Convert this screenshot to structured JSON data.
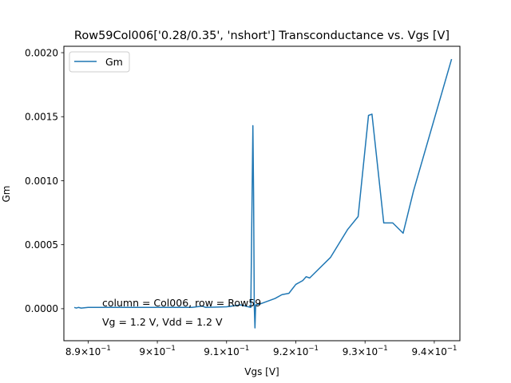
{
  "chart_data": {
    "type": "line",
    "title": "Row59Col006['0.28/0.35', 'nshort'] Transconductance vs. Vgs [V]",
    "xlabel": "Vgs [V]",
    "ylabel": "Gm",
    "xlim": [
      0.8865,
      0.9437
    ],
    "ylim": [
      -0.00025,
      0.00205
    ],
    "x_ticks": [
      {
        "value": 0.89,
        "base": "8.9",
        "exp": "−1"
      },
      {
        "value": 0.9,
        "base": "9",
        "exp": "−1"
      },
      {
        "value": 0.91,
        "base": "9.1",
        "exp": "−1"
      },
      {
        "value": 0.92,
        "base": "9.2",
        "exp": "−1"
      },
      {
        "value": 0.93,
        "base": "9.3",
        "exp": "−1"
      },
      {
        "value": 0.94,
        "base": "9.4",
        "exp": "−1"
      }
    ],
    "y_ticks": [
      {
        "value": 0.0,
        "label": "0.0000"
      },
      {
        "value": 0.0005,
        "label": "0.0005"
      },
      {
        "value": 0.001,
        "label": "0.0010"
      },
      {
        "value": 0.0015,
        "label": "0.0015"
      },
      {
        "value": 0.002,
        "label": "0.0020"
      }
    ],
    "series": [
      {
        "name": "Gm",
        "color": "#1f77b4",
        "x": [
          0.888,
          0.8883,
          0.8886,
          0.889,
          0.89,
          0.895,
          0.9,
          0.905,
          0.9065,
          0.907,
          0.91,
          0.912,
          0.9135,
          0.9138,
          0.9139,
          0.914,
          0.9141,
          0.9142,
          0.915,
          0.917,
          0.918,
          0.919,
          0.92,
          0.921,
          0.9215,
          0.922,
          0.925,
          0.9275,
          0.929,
          0.9305,
          0.931,
          0.9327,
          0.934,
          0.9355,
          0.937,
          0.9425
        ],
        "y": [
          1e-05,
          5e-06,
          1e-05,
          5e-06,
          1e-05,
          1e-05,
          1e-05,
          1e-05,
          2e-05,
          1e-05,
          1.5e-05,
          3e-05,
          1e-05,
          0.00143,
          0.0009,
          2e-05,
          -0.00015,
          3e-05,
          4e-05,
          8e-05,
          0.00011,
          0.00012,
          0.00019,
          0.00022,
          0.00025,
          0.00024,
          0.0004,
          0.00062,
          0.00072,
          0.00151,
          0.00152,
          0.00067,
          0.00067,
          0.00059,
          0.00092,
          0.00195
        ]
      }
    ],
    "legend": {
      "placement": "top-left"
    },
    "grid": false,
    "annotations": [
      {
        "text": "column = Col006, row = Row59"
      },
      {
        "text": "Vg = 1.2 V, Vdd = 1.2 V"
      }
    ]
  }
}
